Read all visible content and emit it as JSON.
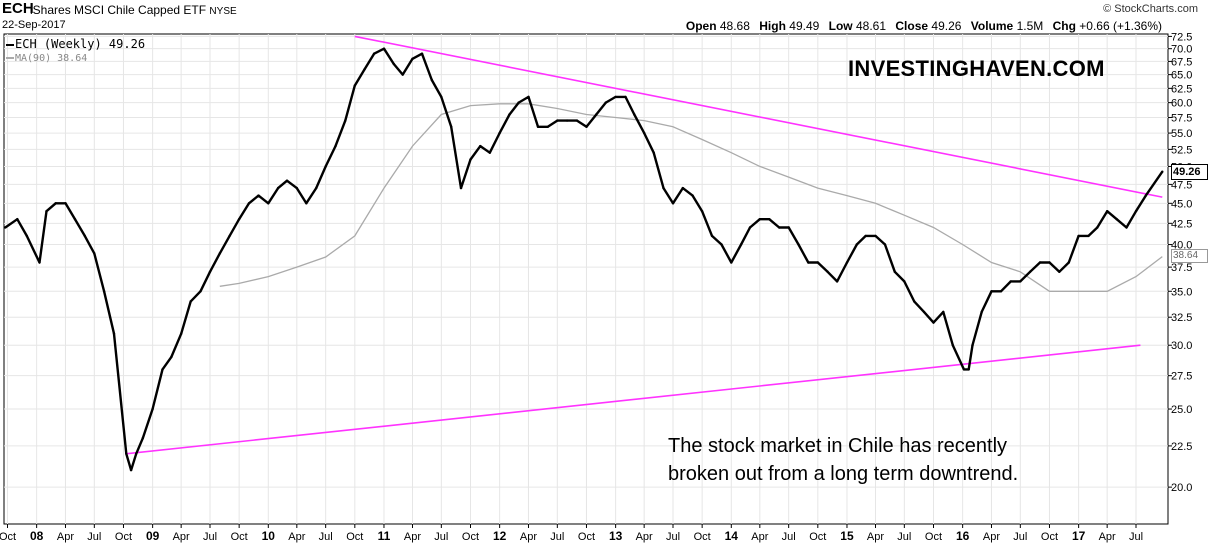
{
  "header": {
    "symbol": "ECH",
    "name": "iShares MSCI Chile Capped ETF",
    "exchange": "NYSE",
    "date": "22-Sep-2017",
    "credit": "© StockCharts.com",
    "open_label": "Open",
    "open": "48.68",
    "high_label": "High",
    "high": "49.49",
    "low_label": "Low",
    "low": "48.61",
    "close_label": "Close",
    "close": "49.26",
    "volume_label": "Volume",
    "volume": "1.5M",
    "chg_label": "Chg",
    "chg": "+0.66 (+1.36%)"
  },
  "watermark": "INVESTINGHAVEN.COM",
  "annotation": "The stock market in Chile has recently\nbroken out from a long term downtrend.",
  "legend": {
    "series1": "ECH (Weekly) 49.26",
    "series2": "MA(90) 38.64"
  },
  "last_price_tag": "49.26",
  "ma_tag": "38.64",
  "colors": {
    "price": "#000000",
    "ma": "#aaaaaa",
    "trendline": "#ff33ff",
    "grid": "#e6e6e6"
  },
  "chart_data": {
    "type": "line",
    "title": "ECH iShares MSCI Chile Capped ETF NYSE",
    "xlabel": "",
    "ylabel": "",
    "y_scale": "log",
    "ylim": [
      18,
      73
    ],
    "xlim": [
      "2007-09-20",
      "2017-10-10"
    ],
    "grid": true,
    "y_ticks": [
      72.5,
      70.0,
      67.5,
      65.0,
      62.5,
      60.0,
      57.5,
      55.0,
      52.5,
      50.0,
      47.5,
      45.0,
      42.5,
      40.0,
      37.5,
      35.0,
      32.5,
      30.0,
      27.5,
      25.0,
      22.5,
      20.0
    ],
    "x_ticks": [
      {
        "date": "2007-10-01",
        "label": "Oct"
      },
      {
        "date": "2008-01-01",
        "label": "08"
      },
      {
        "date": "2008-04-01",
        "label": "Apr"
      },
      {
        "date": "2008-07-01",
        "label": "Jul"
      },
      {
        "date": "2008-10-01",
        "label": "Oct"
      },
      {
        "date": "2009-01-01",
        "label": "09"
      },
      {
        "date": "2009-04-01",
        "label": "Apr"
      },
      {
        "date": "2009-07-01",
        "label": "Jul"
      },
      {
        "date": "2009-10-01",
        "label": "Oct"
      },
      {
        "date": "2010-01-01",
        "label": "10"
      },
      {
        "date": "2010-04-01",
        "label": "Apr"
      },
      {
        "date": "2010-07-01",
        "label": "Jul"
      },
      {
        "date": "2010-10-01",
        "label": "Oct"
      },
      {
        "date": "2011-01-01",
        "label": "11"
      },
      {
        "date": "2011-04-01",
        "label": "Apr"
      },
      {
        "date": "2011-07-01",
        "label": "Jul"
      },
      {
        "date": "2011-10-01",
        "label": "Oct"
      },
      {
        "date": "2012-01-01",
        "label": "12"
      },
      {
        "date": "2012-04-01",
        "label": "Apr"
      },
      {
        "date": "2012-07-01",
        "label": "Jul"
      },
      {
        "date": "2012-10-01",
        "label": "Oct"
      },
      {
        "date": "2013-01-01",
        "label": "13"
      },
      {
        "date": "2013-04-01",
        "label": "Apr"
      },
      {
        "date": "2013-07-01",
        "label": "Jul"
      },
      {
        "date": "2013-10-01",
        "label": "Oct"
      },
      {
        "date": "2014-01-01",
        "label": "14"
      },
      {
        "date": "2014-04-01",
        "label": "Apr"
      },
      {
        "date": "2014-07-01",
        "label": "Jul"
      },
      {
        "date": "2014-10-01",
        "label": "Oct"
      },
      {
        "date": "2015-01-01",
        "label": "15"
      },
      {
        "date": "2015-04-01",
        "label": "Apr"
      },
      {
        "date": "2015-07-01",
        "label": "Jul"
      },
      {
        "date": "2015-10-01",
        "label": "Oct"
      },
      {
        "date": "2016-01-01",
        "label": "16"
      },
      {
        "date": "2016-04-01",
        "label": "Apr"
      },
      {
        "date": "2016-07-01",
        "label": "Jul"
      },
      {
        "date": "2016-10-01",
        "label": "Oct"
      },
      {
        "date": "2017-01-01",
        "label": "17"
      },
      {
        "date": "2017-04-01",
        "label": "Apr"
      },
      {
        "date": "2017-07-01",
        "label": "Jul"
      }
    ],
    "series": [
      {
        "name": "ECH (Weekly)",
        "x": [
          "2007-09-24",
          "2007-11-01",
          "2007-12-01",
          "2008-01-10",
          "2008-02-01",
          "2008-03-01",
          "2008-04-01",
          "2008-05-01",
          "2008-06-01",
          "2008-07-01",
          "2008-08-01",
          "2008-09-01",
          "2008-10-10",
          "2008-10-25",
          "2008-11-10",
          "2008-12-01",
          "2009-01-01",
          "2009-02-01",
          "2009-03-01",
          "2009-04-01",
          "2009-05-01",
          "2009-06-01",
          "2009-07-01",
          "2009-08-01",
          "2009-09-01",
          "2009-10-01",
          "2009-11-01",
          "2009-12-01",
          "2010-01-01",
          "2010-02-01",
          "2010-03-01",
          "2010-04-01",
          "2010-05-01",
          "2010-06-01",
          "2010-07-01",
          "2010-08-01",
          "2010-09-01",
          "2010-10-01",
          "2010-11-01",
          "2010-12-01",
          "2011-01-01",
          "2011-02-01",
          "2011-03-01",
          "2011-04-01",
          "2011-05-01",
          "2011-06-01",
          "2011-07-01",
          "2011-08-01",
          "2011-09-01",
          "2011-10-01",
          "2011-11-01",
          "2011-12-01",
          "2012-01-01",
          "2012-02-01",
          "2012-03-01",
          "2012-04-01",
          "2012-05-01",
          "2012-06-01",
          "2012-07-01",
          "2012-08-01",
          "2012-09-01",
          "2012-10-01",
          "2012-11-01",
          "2012-12-01",
          "2013-01-01",
          "2013-02-01",
          "2013-03-01",
          "2013-04-01",
          "2013-05-01",
          "2013-06-01",
          "2013-07-01",
          "2013-08-01",
          "2013-09-01",
          "2013-10-01",
          "2013-11-01",
          "2013-12-01",
          "2014-01-01",
          "2014-02-01",
          "2014-03-01",
          "2014-04-01",
          "2014-05-01",
          "2014-06-01",
          "2014-07-01",
          "2014-08-01",
          "2014-09-01",
          "2014-10-01",
          "2014-11-01",
          "2014-12-01",
          "2015-01-01",
          "2015-02-01",
          "2015-03-01",
          "2015-04-01",
          "2015-05-01",
          "2015-06-01",
          "2015-07-01",
          "2015-08-01",
          "2015-09-01",
          "2015-10-01",
          "2015-11-01",
          "2015-12-01",
          "2016-01-05",
          "2016-01-20",
          "2016-02-01",
          "2016-03-01",
          "2016-04-01",
          "2016-05-01",
          "2016-06-01",
          "2016-07-01",
          "2016-08-01",
          "2016-09-01",
          "2016-10-01",
          "2016-11-01",
          "2016-12-01",
          "2017-01-01",
          "2017-02-01",
          "2017-03-01",
          "2017-04-01",
          "2017-05-01",
          "2017-06-01",
          "2017-07-01",
          "2017-08-01",
          "2017-09-22"
        ],
        "values": [
          42,
          43,
          41,
          38,
          44,
          45,
          45,
          43,
          41,
          39,
          35,
          31,
          22,
          21,
          22,
          23,
          25,
          28,
          29,
          31,
          34,
          35,
          37,
          39,
          41,
          43,
          45,
          46,
          45,
          47,
          48,
          47,
          45,
          47,
          50,
          53,
          57,
          63,
          66,
          69,
          70,
          67,
          65,
          68,
          69,
          64,
          61,
          56,
          47,
          51,
          53,
          52,
          55,
          58,
          60,
          61,
          56,
          56,
          57,
          57,
          57,
          56,
          58,
          60,
          61,
          61,
          58,
          55,
          52,
          47,
          45,
          47,
          46,
          44,
          41,
          40,
          38,
          40,
          42,
          43,
          43,
          42,
          42,
          40,
          38,
          38,
          37,
          36,
          38,
          40,
          41,
          41,
          40,
          37,
          36,
          34,
          33,
          32,
          33,
          30,
          28,
          28,
          30,
          33,
          35,
          35,
          36,
          36,
          37,
          38,
          38,
          37,
          38,
          41,
          41,
          42,
          44,
          43,
          42,
          44,
          46,
          49.26
        ]
      },
      {
        "name": "MA(90)",
        "x": [
          "2009-08-01",
          "2009-10-01",
          "2010-01-01",
          "2010-04-01",
          "2010-07-01",
          "2010-10-01",
          "2011-01-01",
          "2011-04-01",
          "2011-07-01",
          "2011-10-01",
          "2012-01-01",
          "2012-04-01",
          "2012-07-01",
          "2012-10-01",
          "2013-01-01",
          "2013-04-01",
          "2013-07-01",
          "2013-10-01",
          "2014-01-01",
          "2014-04-01",
          "2014-07-01",
          "2014-10-01",
          "2015-01-01",
          "2015-04-01",
          "2015-07-01",
          "2015-10-01",
          "2016-01-01",
          "2016-04-01",
          "2016-07-01",
          "2016-10-01",
          "2017-01-01",
          "2017-04-01",
          "2017-07-01",
          "2017-09-22"
        ],
        "values": [
          35.5,
          35.8,
          36.5,
          37.5,
          38.6,
          41,
          47,
          53,
          58,
          59.5,
          59.8,
          59.8,
          59,
          58,
          57.5,
          57,
          56,
          54,
          52,
          50,
          48.5,
          47,
          46,
          45,
          43.5,
          42,
          40,
          38,
          37,
          35,
          35,
          35,
          36.5,
          38.64
        ]
      }
    ],
    "trendlines": [
      {
        "x": [
          "2010-10-01",
          "2017-09-22"
        ],
        "values": [
          72.5,
          45.8
        ]
      },
      {
        "x": [
          "2008-10-10",
          "2017-07-15"
        ],
        "values": [
          22,
          30
        ]
      }
    ]
  }
}
